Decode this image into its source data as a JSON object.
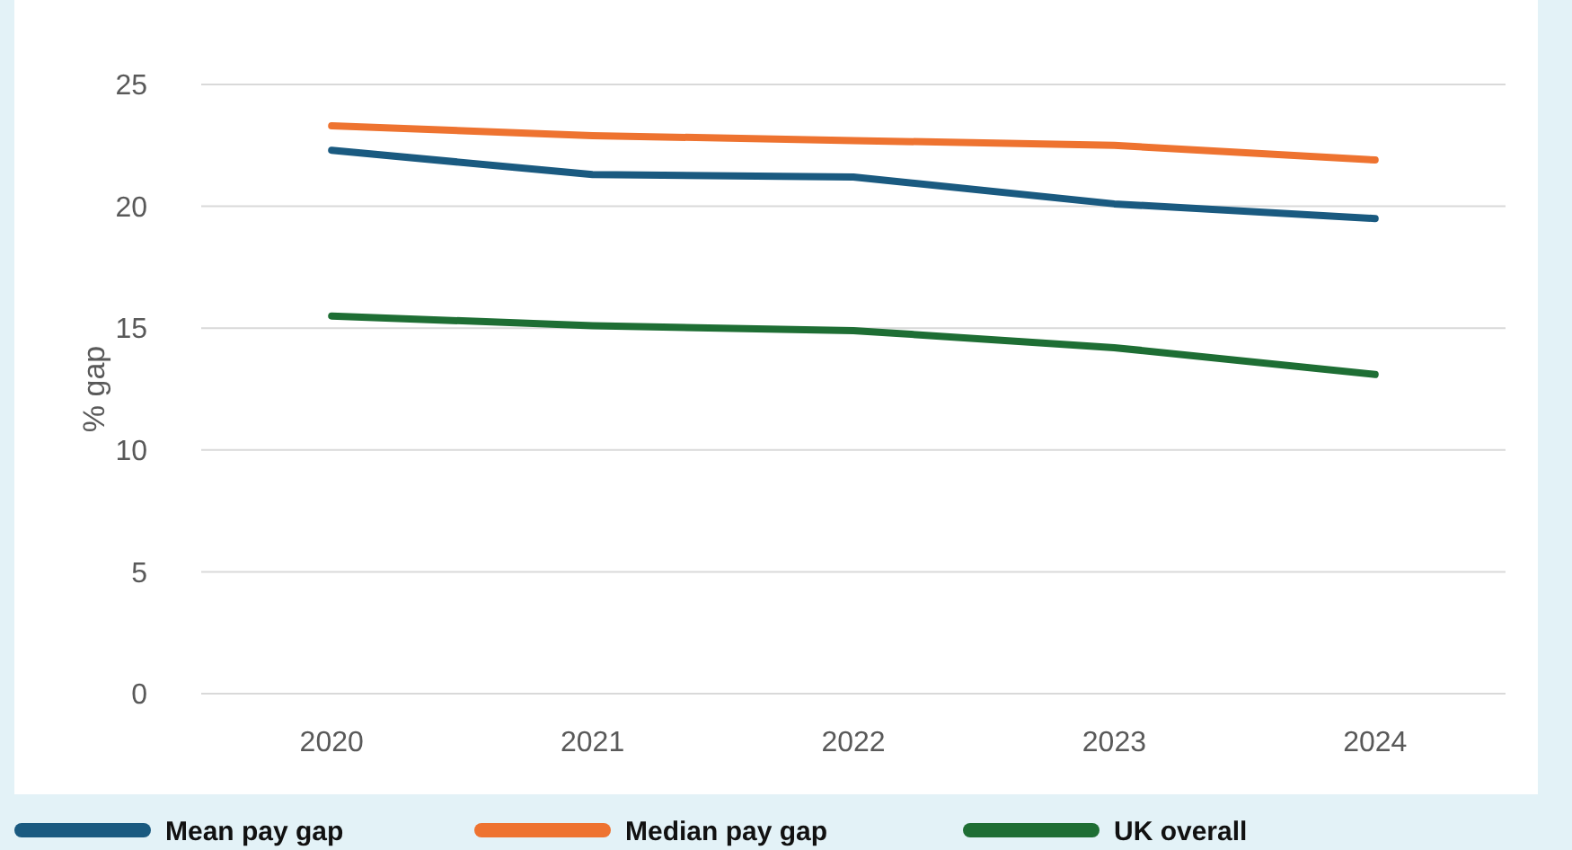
{
  "chart_data": {
    "type": "line",
    "ylabel": "% gap",
    "categories": [
      "2020",
      "2021",
      "2022",
      "2023",
      "2024"
    ],
    "ylim": [
      0,
      25
    ],
    "yticks": [
      0,
      5,
      10,
      15,
      20,
      25
    ],
    "grid": "y",
    "legend": "bottom",
    "marker": "none",
    "line_style": "solid",
    "series": [
      {
        "name": "Mean pay gap",
        "color": "#1a5a80",
        "values": [
          22.3,
          21.3,
          21.2,
          20.1,
          19.5
        ]
      },
      {
        "name": "Median pay gap",
        "color": "#ee7330",
        "values": [
          23.3,
          22.9,
          22.7,
          22.5,
          21.9
        ]
      },
      {
        "name": "UK overall",
        "color": "#1e6e34",
        "values": [
          15.5,
          15.1,
          14.9,
          14.2,
          13.1
        ]
      }
    ]
  }
}
